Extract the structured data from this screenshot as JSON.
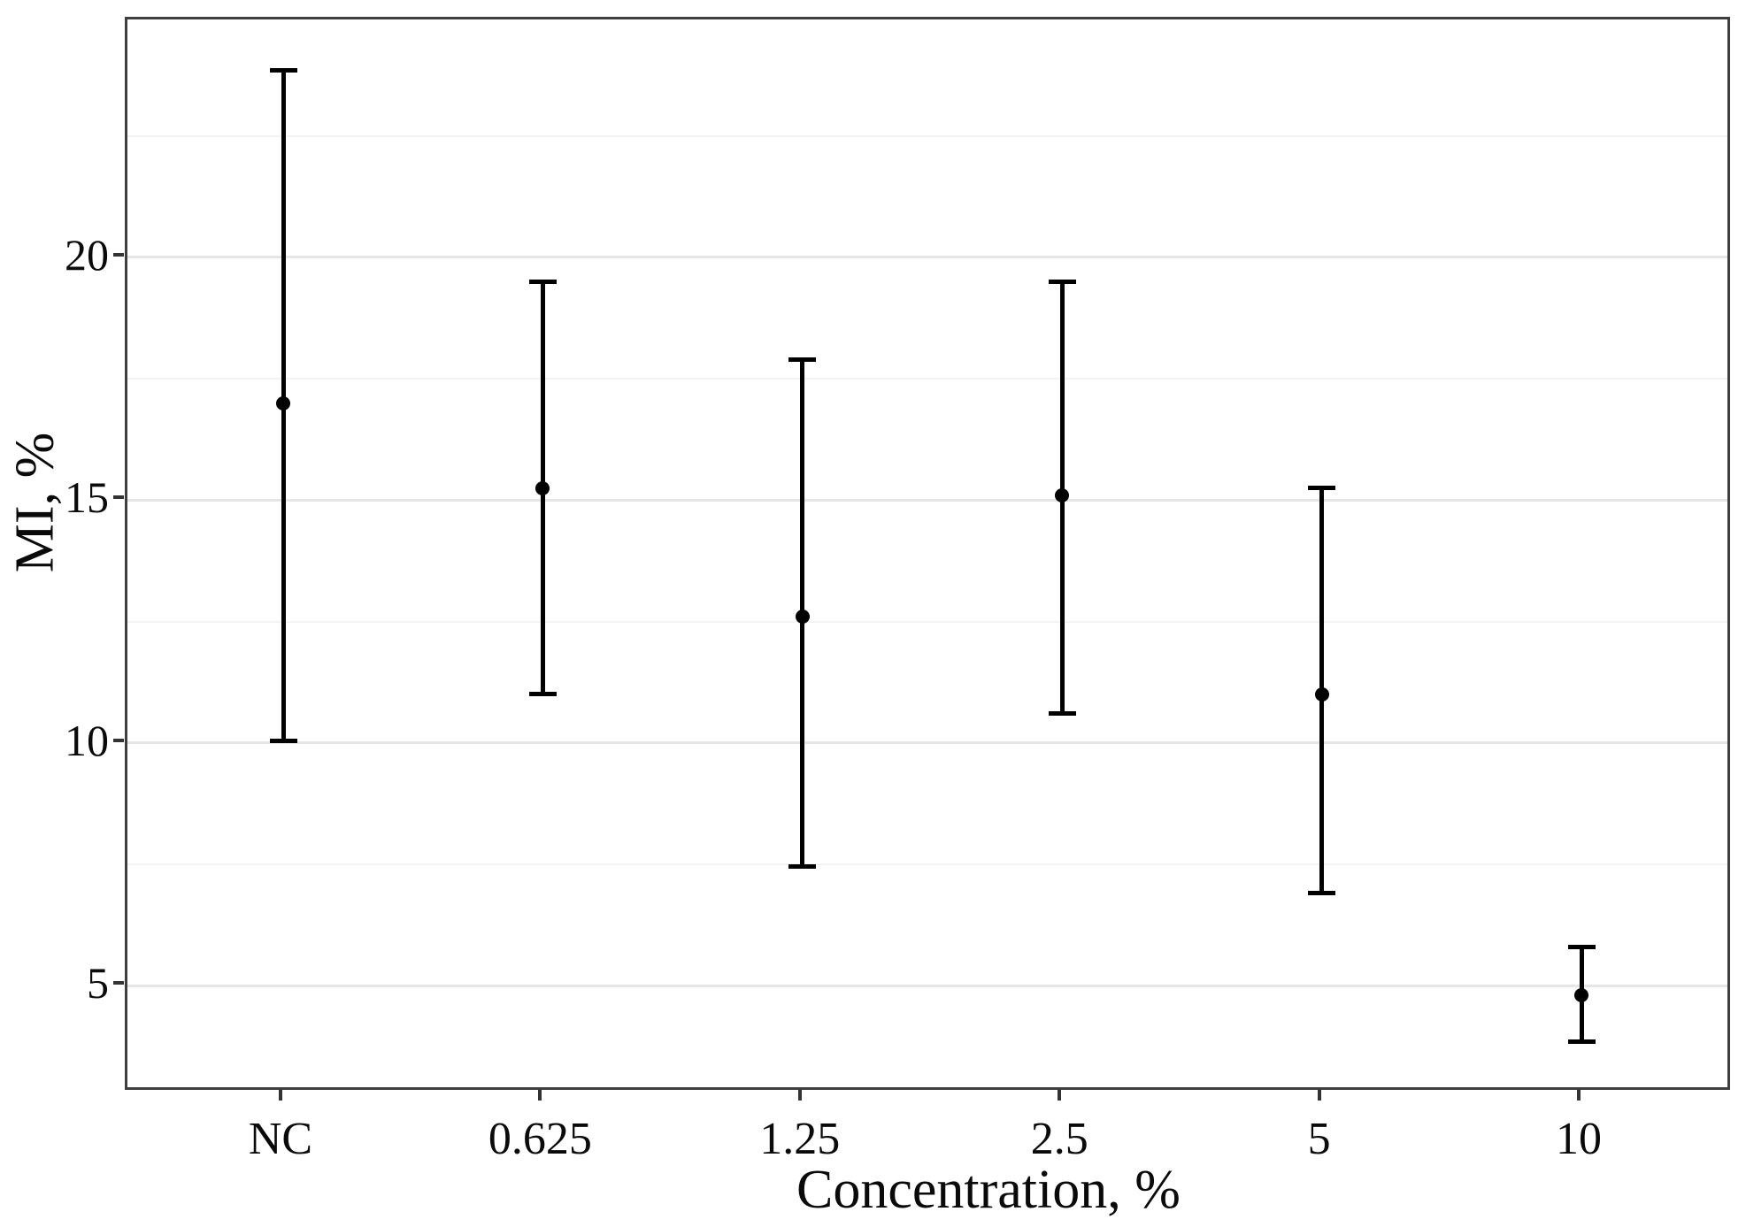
{
  "chart_data": {
    "type": "scatter",
    "subtype": "points-with-error-bars",
    "title": "",
    "xlabel": "Concentration, %",
    "ylabel": "MI, %",
    "categories": [
      "NC",
      "0.625",
      "1.25",
      "2.5",
      "5",
      "10"
    ],
    "series": [
      {
        "name": "MI",
        "values": [
          17.0,
          15.25,
          12.6,
          15.1,
          11.0,
          4.8
        ],
        "error_low": [
          10.05,
          11.0,
          7.45,
          10.6,
          6.9,
          3.85
        ],
        "error_high": [
          23.85,
          19.5,
          17.9,
          19.5,
          15.25,
          5.8
        ]
      }
    ],
    "ylim": [
      2.8,
      24.9
    ],
    "yticks": [
      5,
      10,
      15,
      20
    ],
    "ytick_labels": [
      "5",
      "10",
      "15",
      "20"
    ],
    "minor_gridlines": [
      7.5,
      12.5,
      17.5,
      22.5
    ],
    "grid": true,
    "legend": false,
    "marker": "filled-circle",
    "error_caps": true,
    "colors": {
      "point": "#000000",
      "error_bar": "#000000",
      "grid_major": "#e6e6e6",
      "grid_minor": "#f3f3f3",
      "panel_border": "#3e3e3e",
      "tick_mark": "#333333",
      "text": "#0a0a0a",
      "background": "#ffffff"
    }
  }
}
